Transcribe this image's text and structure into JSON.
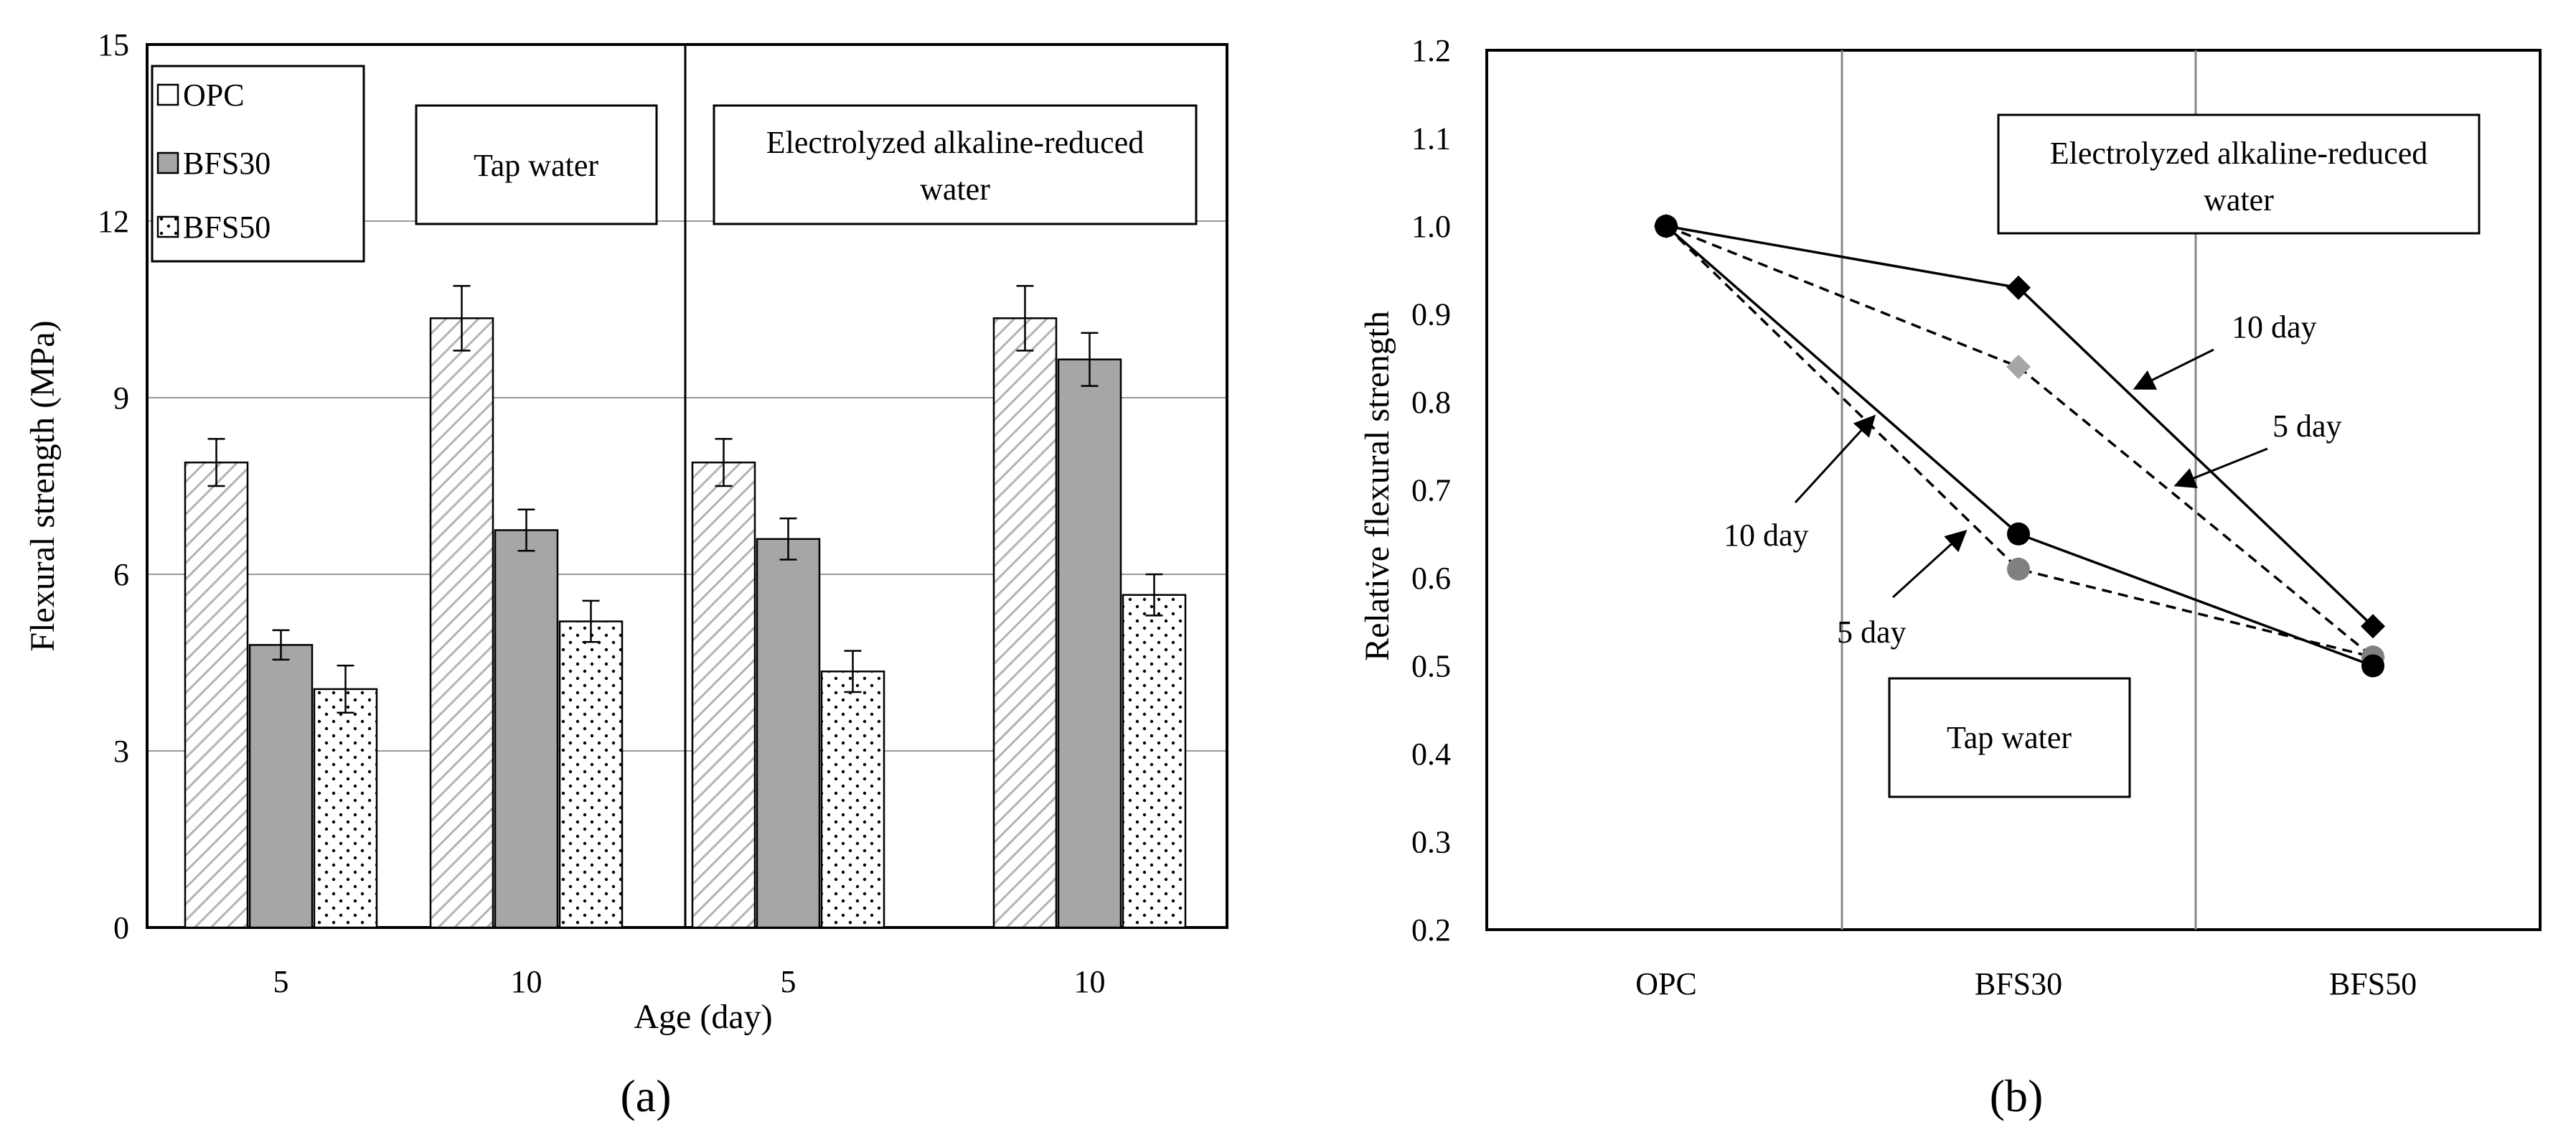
{
  "chart_data": [
    {
      "id": "a",
      "type": "bar",
      "panel_label": "a",
      "title": "",
      "xlabel": "Age (day)",
      "ylabel": "Flexural strength (MPa)",
      "ylim": [
        0,
        15
      ],
      "yticks": [
        0,
        3,
        6,
        9,
        12,
        15
      ],
      "grid": true,
      "categories": [
        "5",
        "10",
        "5",
        "10"
      ],
      "groups": [
        "Tap water",
        "Electrolyzed alkaline-reduced water"
      ],
      "series": [
        {
          "name": "OPC",
          "values": [
            7.9,
            10.35,
            7.9,
            10.35
          ],
          "errors": [
            0.4,
            0.55,
            0.4,
            0.55
          ]
        },
        {
          "name": "BFS30",
          "values": [
            4.8,
            6.75,
            6.6,
            9.65
          ],
          "errors": [
            0.25,
            0.35,
            0.35,
            0.45
          ]
        },
        {
          "name": "BFS50",
          "values": [
            4.05,
            5.2,
            4.35,
            5.65
          ],
          "errors": [
            0.4,
            0.35,
            0.35,
            0.35
          ]
        }
      ],
      "legend": [
        "OPC",
        "BFS30",
        "BFS50"
      ],
      "annotations": [
        "Tap water",
        "Electrolyzed alkaline-reduced water"
      ]
    },
    {
      "id": "b",
      "type": "line",
      "panel_label": "b",
      "title": "",
      "xlabel": "",
      "ylabel": "Relative flexural strength",
      "ylim": [
        0.2,
        1.2
      ],
      "yticks": [
        "0.2",
        "0.3",
        "0.4",
        "0.5",
        "0.6",
        "0.7",
        "0.8",
        "0.9",
        "1.0",
        "1.1",
        "1.2"
      ],
      "categories": [
        "OPC",
        "BFS30",
        "BFS50"
      ],
      "series": [
        {
          "name": "Electrolyzed alkaline-reduced water 10 day",
          "values": [
            1.0,
            0.93,
            0.545
          ],
          "marker": "diamond",
          "line": "solid",
          "color": "#000000"
        },
        {
          "name": "Electrolyzed alkaline-reduced water 5 day",
          "values": [
            1.0,
            0.84,
            0.51
          ],
          "marker": "diamond",
          "line": "dashed",
          "color": "#a6a6a6"
        },
        {
          "name": "Tap water 10 day",
          "values": [
            1.0,
            0.65,
            0.5
          ],
          "marker": "circle",
          "line": "solid",
          "color": "#000000"
        },
        {
          "name": "Tap water 5 day",
          "values": [
            1.0,
            0.61,
            0.51
          ],
          "marker": "circle",
          "line": "dashed",
          "color": "#808080"
        }
      ],
      "annotations": [
        "Electrolyzed alkaline-reduced water",
        "Tap water",
        "10 day",
        "5 day",
        "10 day",
        "5 day"
      ]
    }
  ],
  "labels": {
    "legend_opc": "OPC",
    "legend_bfs30": "BFS30",
    "legend_bfs50": "BFS50",
    "tap_water": "Tap water",
    "elec_line1": "Electrolyzed alkaline-reduced",
    "elec_line2": "water",
    "day10": "10 day",
    "day5": "5 day",
    "panel_a": "(a)",
    "panel_b": "(b)"
  },
  "colors": {
    "opc_hatch": "#b3b3b3",
    "bfs30_fill": "#a6a6a6",
    "bfs50_dots": "#000000",
    "grid": "#999999",
    "gray_diamond": "#a6a6a6",
    "gray_circle": "#808080"
  }
}
